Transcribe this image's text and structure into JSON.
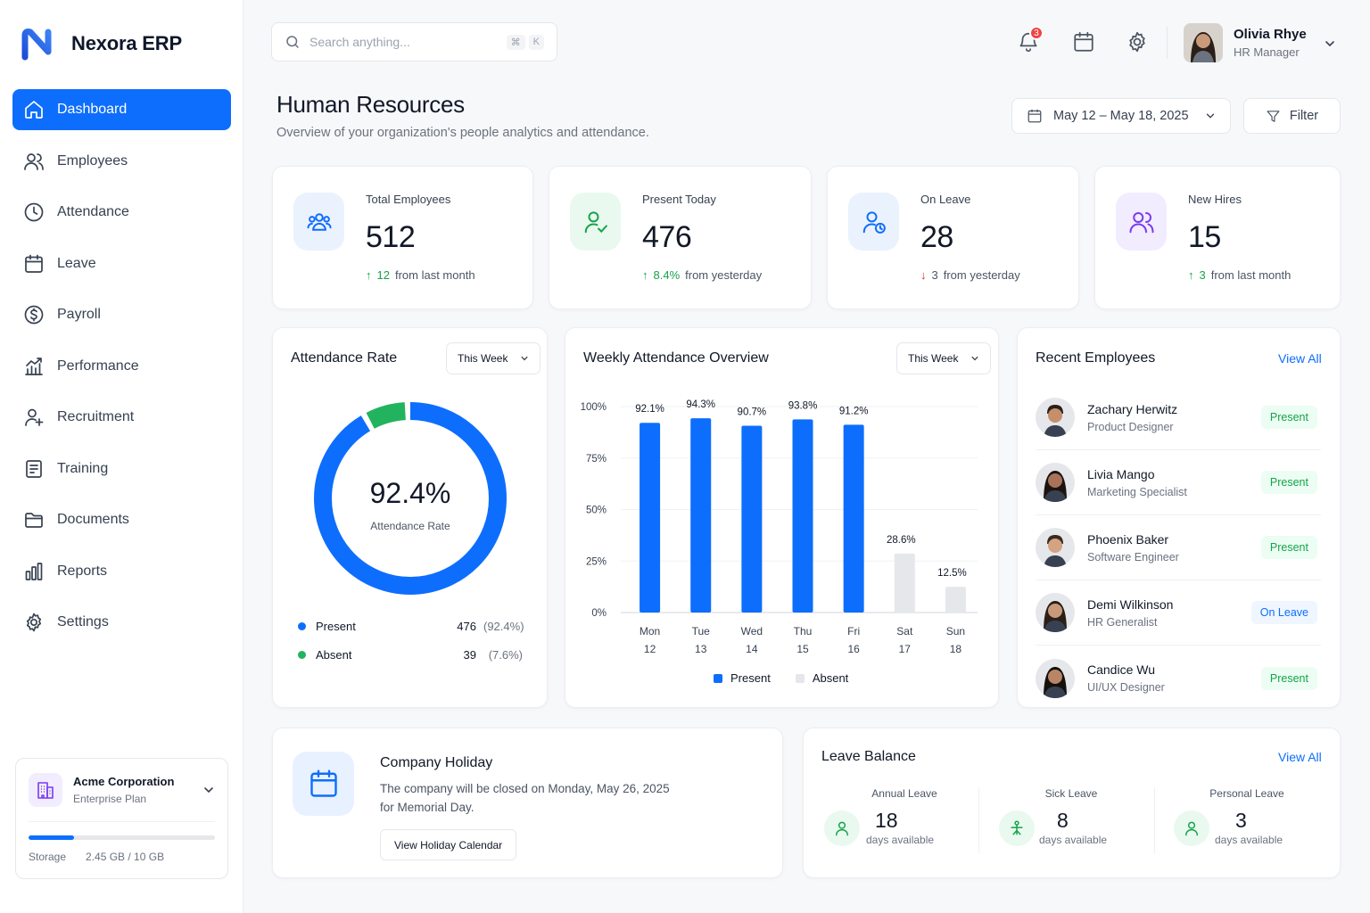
{
  "brand": {
    "name": "Nexora ERP",
    "accent": "#0d6efd"
  },
  "nav": [
    {
      "label": "Dashboard",
      "icon": "home-icon",
      "active": true
    },
    {
      "label": "Employees",
      "icon": "users-icon"
    },
    {
      "label": "Attendance",
      "icon": "clock-icon"
    },
    {
      "label": "Leave",
      "icon": "calendar-icon"
    },
    {
      "label": "Payroll",
      "icon": "dollar-icon"
    },
    {
      "label": "Performance",
      "icon": "chart-up-icon"
    },
    {
      "label": "Recruitment",
      "icon": "user-plus-icon"
    },
    {
      "label": "Training",
      "icon": "document-icon"
    },
    {
      "label": "Documents",
      "icon": "folder-icon"
    },
    {
      "label": "Reports",
      "icon": "bar-chart-icon"
    },
    {
      "label": "Settings",
      "icon": "gear-icon"
    }
  ],
  "org": {
    "name": "Acme Corporation",
    "plan": "Enterprise Plan",
    "storage_label": "Storage",
    "storage_text": "2.45 GB / 10 GB",
    "storage_fraction": 0.245
  },
  "search": {
    "placeholder": "Search anything...",
    "shortcut": [
      "⌘",
      "K"
    ]
  },
  "notifications": {
    "count": "3"
  },
  "user": {
    "name": "Olivia Rhye",
    "role": "HR Manager"
  },
  "header": {
    "title": "Human Resources",
    "subtitle": "Overview of your organization's people analytics and attendance.",
    "date_range": "May 12 – May 18, 2025",
    "filter_label": "Filter"
  },
  "stats": [
    {
      "label": "Total Employees",
      "value": "512",
      "delta": "12",
      "delta_suffix": "from last month",
      "direction": "up",
      "icon": "users-icon",
      "icon_bg": "#eaf2fe",
      "icon_color": "#0d6efd"
    },
    {
      "label": "Present Today",
      "value": "476",
      "delta": "8.4%",
      "delta_suffix": "from yesterday",
      "direction": "up",
      "icon": "user-check-icon",
      "icon_bg": "#e9f9ef",
      "icon_color": "#16a34a"
    },
    {
      "label": "On Leave",
      "value": "28",
      "delta": "3",
      "delta_suffix": "from yesterday",
      "direction": "down",
      "icon": "user-clock-icon",
      "icon_bg": "#eaf2fe",
      "icon_color": "#0d6efd"
    },
    {
      "label": "New Hires",
      "value": "15",
      "delta": "3",
      "delta_suffix": "from last month",
      "direction": "up",
      "icon": "user-group-icon",
      "icon_bg": "#f1ecfe",
      "icon_color": "#7c3aed"
    }
  ],
  "attendance_rate": {
    "title": "Attendance Rate",
    "period": "This Week",
    "center_value": "92.4%",
    "center_label": "Attendance Rate",
    "rows": [
      {
        "label": "Present",
        "value": "476",
        "pct": "(92.4%)",
        "color": "#0d6efd",
        "fraction": 0.924
      },
      {
        "label": "Absent",
        "value": "39",
        "pct": "(7.6%)",
        "color": "#22b35e",
        "fraction": 0.076
      }
    ]
  },
  "weekly": {
    "title": "Weekly Attendance Overview",
    "period": "This Week",
    "legend": [
      {
        "label": "Present",
        "color": "#0d6efd"
      },
      {
        "label": "Absent",
        "color": "#e5e7eb"
      }
    ]
  },
  "chart_data": {
    "type": "bar",
    "categories": [
      "Mon 12",
      "Tue 13",
      "Wed 14",
      "Thu 15",
      "Fri 16",
      "Sat 17",
      "Sun 18"
    ],
    "day_names": [
      "Mon",
      "Tue",
      "Wed",
      "Thu",
      "Fri",
      "Sat",
      "Sun"
    ],
    "day_nums": [
      "12",
      "13",
      "14",
      "15",
      "16",
      "17",
      "18"
    ],
    "values": [
      92.1,
      94.3,
      90.7,
      93.8,
      91.2,
      28.6,
      12.5
    ],
    "labels": [
      "92.1%",
      "94.3%",
      "90.7%",
      "93.8%",
      "91.2%",
      "28.6%",
      "12.5%"
    ],
    "series_of_bar": [
      "Present",
      "Present",
      "Present",
      "Present",
      "Present",
      "Absent",
      "Absent"
    ],
    "y_ticks": [
      "0%",
      "25%",
      "50%",
      "75%",
      "100%"
    ],
    "ylim": [
      0,
      100
    ],
    "grid": true,
    "legend": "bottom"
  },
  "recent": {
    "title": "Recent Employees",
    "view_all": "View All",
    "employees": [
      {
        "name": "Zachary Herwitz",
        "role": "Product Designer",
        "status": "Present",
        "kind": "present"
      },
      {
        "name": "Livia Mango",
        "role": "Marketing Specialist",
        "status": "Present",
        "kind": "present"
      },
      {
        "name": "Phoenix Baker",
        "role": "Software Engineer",
        "status": "Present",
        "kind": "present"
      },
      {
        "name": "Demi Wilkinson",
        "role": "HR Generalist",
        "status": "On Leave",
        "kind": "leave"
      },
      {
        "name": "Candice Wu",
        "role": "UI/UX Designer",
        "status": "Present",
        "kind": "present"
      }
    ]
  },
  "holiday": {
    "title": "Company Holiday",
    "text": "The company will be closed on Monday, May 26, 2025 for Memorial Day.",
    "button": "View Holiday Calendar"
  },
  "leave_balance": {
    "title": "Leave Balance",
    "view_all": "View All",
    "items": [
      {
        "label": "Annual Leave",
        "value": "18",
        "sub": "days available",
        "icon": "user-icon"
      },
      {
        "label": "Sick Leave",
        "value": "8",
        "sub": "days available",
        "icon": "medical-icon"
      },
      {
        "label": "Personal Leave",
        "value": "3",
        "sub": "days available",
        "icon": "user-icon"
      }
    ]
  }
}
